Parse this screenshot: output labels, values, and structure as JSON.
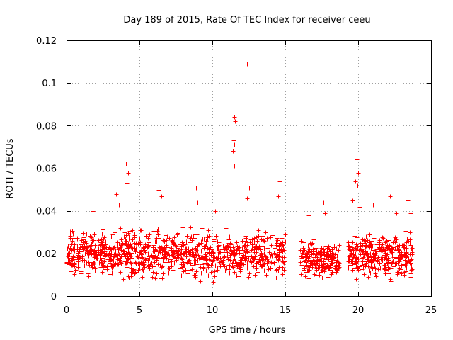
{
  "chart_data": {
    "type": "scatter",
    "title": "Day 189 of 2015, Rate Of TEC Index for receiver ceeu",
    "xlabel": "GPS time / hours",
    "ylabel": "ROTI / TECUs",
    "xlim": [
      0,
      25
    ],
    "ylim": [
      0,
      0.12
    ],
    "xticks": [
      0,
      5,
      10,
      15,
      20,
      25
    ],
    "xtick_labels": [
      "0",
      "5",
      "10",
      "15",
      "20",
      "25"
    ],
    "yticks": [
      0,
      0.02,
      0.04,
      0.06,
      0.08,
      0.1,
      0.12
    ],
    "ytick_labels": [
      "0",
      "0.02",
      "0.04",
      "0.06",
      "0.08",
      "0.1",
      "0.12"
    ],
    "grid": true,
    "marker": "+",
    "marker_color": "#ff0000",
    "series": [
      {
        "name": "ROTI",
        "density_segments": [
          {
            "x_range": [
              0.0,
              15.0
            ],
            "y_range": [
              0.005,
              0.035
            ],
            "count": 1100
          },
          {
            "x_range": [
              16.0,
              18.7
            ],
            "y_range": [
              0.006,
              0.028
            ],
            "count": 220
          },
          {
            "x_range": [
              19.3,
              23.7
            ],
            "y_range": [
              0.005,
              0.033
            ],
            "count": 360
          }
        ],
        "points": [
          [
            0.3,
            0.018
          ],
          [
            1.8,
            0.04
          ],
          [
            3.4,
            0.048
          ],
          [
            3.6,
            0.043
          ],
          [
            4.1,
            0.062
          ],
          [
            4.2,
            0.058
          ],
          [
            4.15,
            0.053
          ],
          [
            6.3,
            0.05
          ],
          [
            6.5,
            0.047
          ],
          [
            8.9,
            0.051
          ],
          [
            9.0,
            0.044
          ],
          [
            10.2,
            0.04
          ],
          [
            11.5,
            0.084
          ],
          [
            11.55,
            0.082
          ],
          [
            11.45,
            0.073
          ],
          [
            11.5,
            0.071
          ],
          [
            11.4,
            0.068
          ],
          [
            11.5,
            0.061
          ],
          [
            11.6,
            0.052
          ],
          [
            11.45,
            0.051
          ],
          [
            12.4,
            0.109
          ],
          [
            12.5,
            0.051
          ],
          [
            12.4,
            0.046
          ],
          [
            13.8,
            0.044
          ],
          [
            14.4,
            0.052
          ],
          [
            14.6,
            0.054
          ],
          [
            14.5,
            0.047
          ],
          [
            16.6,
            0.038
          ],
          [
            17.6,
            0.044
          ],
          [
            17.7,
            0.039
          ],
          [
            19.9,
            0.064
          ],
          [
            20.0,
            0.058
          ],
          [
            19.8,
            0.054
          ],
          [
            19.95,
            0.052
          ],
          [
            19.6,
            0.045
          ],
          [
            20.1,
            0.042
          ],
          [
            21.0,
            0.043
          ],
          [
            22.1,
            0.051
          ],
          [
            22.2,
            0.047
          ],
          [
            22.6,
            0.039
          ],
          [
            23.4,
            0.045
          ],
          [
            23.6,
            0.039
          ]
        ]
      }
    ]
  }
}
